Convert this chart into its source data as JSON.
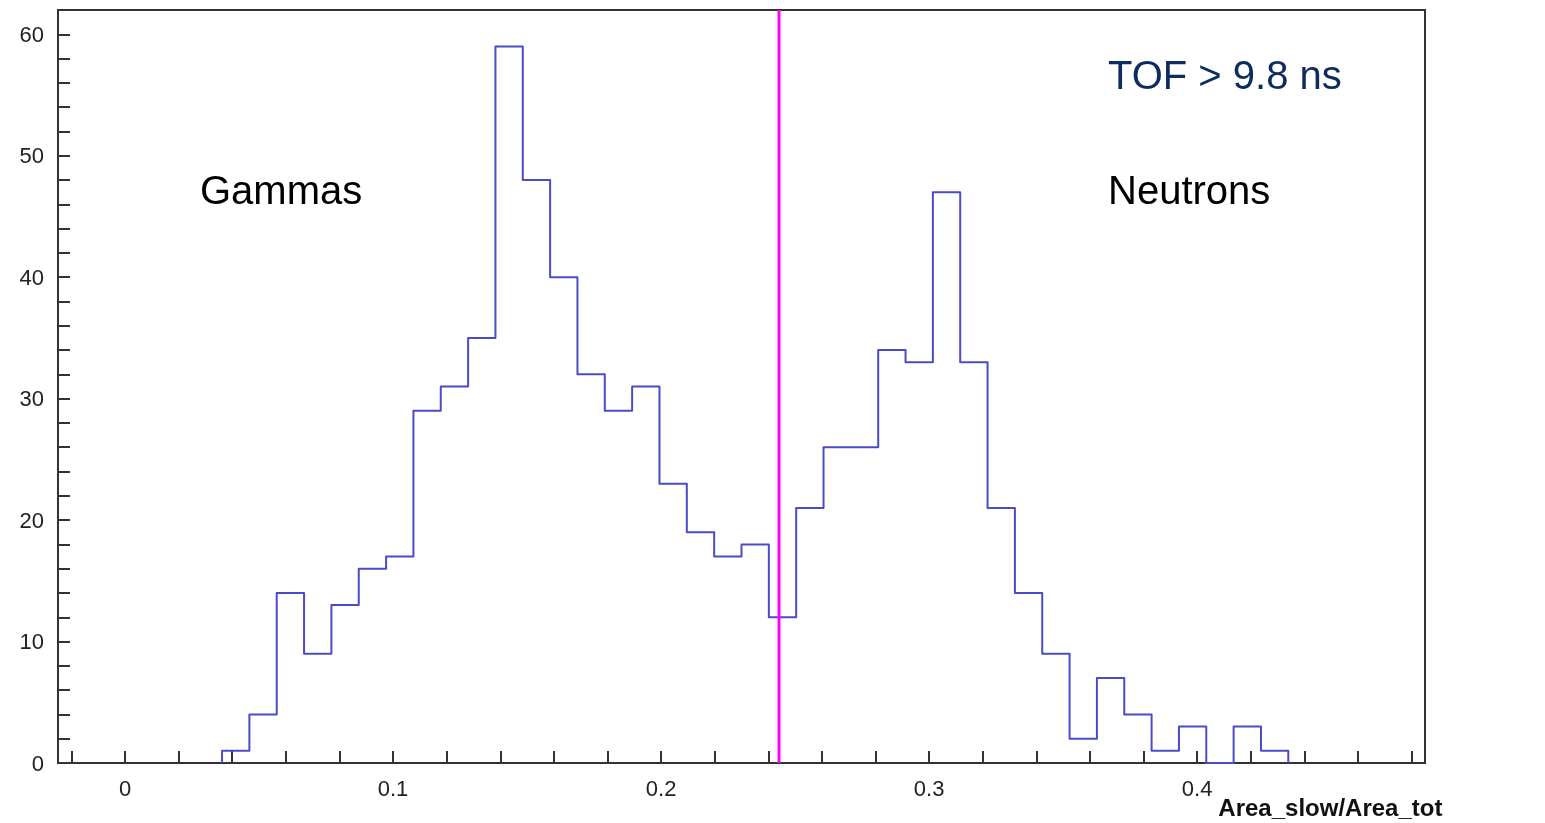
{
  "chart_data": {
    "type": "histogram",
    "xlabel": "Area_slow/Area_tot",
    "annotations": [
      "Gammas",
      "Neutrons",
      "TOF > 9.8 ns"
    ],
    "bins": [
      0.0362,
      0.0464,
      0.0566,
      0.0668,
      0.077,
      0.0872,
      0.0974,
      0.1076,
      0.1178,
      0.128,
      0.1382,
      0.1484,
      0.1586,
      0.1688,
      0.179,
      0.1892,
      0.1994,
      0.2096,
      0.2198,
      0.23,
      0.2402,
      0.2504,
      0.2606,
      0.2708,
      0.281,
      0.2912,
      0.3014,
      0.3116,
      0.3218,
      0.332,
      0.3422,
      0.3524,
      0.3626,
      0.3728,
      0.383,
      0.3932,
      0.4034,
      0.4136,
      0.4238,
      0.434
    ],
    "values": [
      1,
      4,
      14,
      9,
      13,
      16,
      17,
      29,
      31,
      35,
      59,
      48,
      40,
      32,
      29,
      31,
      23,
      19,
      17,
      18,
      12,
      21,
      26,
      26,
      34,
      33,
      47,
      33,
      21,
      14,
      9,
      2,
      7,
      4,
      1,
      3,
      0,
      3,
      1
    ],
    "color": "#4b4bc8",
    "xlim": [
      -0.025,
      0.485
    ],
    "xticks": [
      {
        "value": -0.02,
        "label": null
      },
      0,
      {
        "value": 0.02,
        "label": null
      },
      {
        "value": 0.04,
        "label": null
      },
      {
        "value": 0.06,
        "label": null
      },
      {
        "value": 0.08,
        "label": null
      },
      0.1,
      {
        "value": 0.12,
        "label": null
      },
      {
        "value": 0.14,
        "label": null
      },
      {
        "value": 0.16,
        "label": null
      },
      {
        "value": 0.18,
        "label": null
      },
      0.2,
      {
        "value": 0.22,
        "label": null
      },
      {
        "value": 0.24,
        "label": null
      },
      {
        "value": 0.26,
        "label": null
      },
      {
        "value": 0.28,
        "label": null
      },
      0.3,
      {
        "value": 0.32,
        "label": null
      },
      {
        "value": 0.34,
        "label": null
      },
      {
        "value": 0.36,
        "label": null
      },
      {
        "value": 0.38,
        "label": null
      },
      0.4,
      {
        "value": 0.42,
        "label": null
      },
      {
        "value": 0.44,
        "label": null
      },
      {
        "value": 0.46,
        "label": null
      },
      {
        "value": 0.48,
        "label": null
      }
    ],
    "ylim": [
      0,
      62
    ],
    "yticks": [
      0,
      {
        "value": 2,
        "label": null
      },
      {
        "value": 4,
        "label": null
      },
      {
        "value": 6,
        "label": null
      },
      {
        "value": 8,
        "label": null
      },
      10,
      {
        "value": 12,
        "label": null
      },
      {
        "value": 14,
        "label": null
      },
      {
        "value": 16,
        "label": null
      },
      {
        "value": 18,
        "label": null
      },
      20,
      {
        "value": 22,
        "label": null
      },
      {
        "value": 24,
        "label": null
      },
      {
        "value": 26,
        "label": null
      },
      {
        "value": 28,
        "label": null
      },
      30,
      {
        "value": 32,
        "label": null
      },
      {
        "value": 34,
        "label": null
      },
      {
        "value": 36,
        "label": null
      },
      {
        "value": 38,
        "label": null
      },
      40,
      {
        "value": 42,
        "label": null
      },
      {
        "value": 44,
        "label": null
      },
      {
        "value": 46,
        "label": null
      },
      {
        "value": 48,
        "label": null
      },
      50,
      {
        "value": 52,
        "label": null
      },
      {
        "value": 54,
        "label": null
      },
      {
        "value": 56,
        "label": null
      },
      {
        "value": 58,
        "label": null
      },
      60
    ],
    "ref_lines": [
      {
        "axis": "x",
        "value": 0.244,
        "color": "#ff00ff"
      }
    ],
    "grid": false
  }
}
